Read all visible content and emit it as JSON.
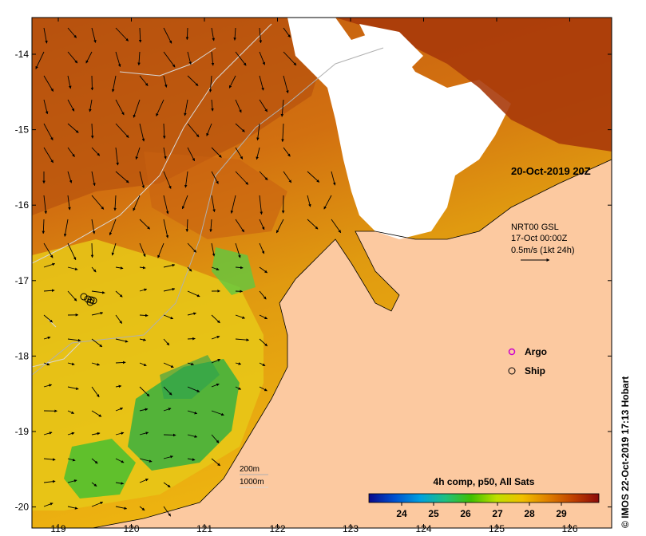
{
  "map": {
    "timestamp": "20-Oct-2019 20Z",
    "current_legend": {
      "line1": "NRT00 GSL",
      "line2": "17-Oct 00:00Z",
      "line3": "0.5m/s (1kt 24h)"
    },
    "symbol_legend": {
      "argo_label": "Argo",
      "ship_label": "Ship",
      "argo_color": "#cc00cc"
    },
    "isobaths": {
      "label_200": "200m",
      "label_1000": "1000m"
    },
    "colorbar": {
      "title": "4h comp, p50, All Sats",
      "ticks": [
        "24",
        "25",
        "26",
        "27",
        "28",
        "29"
      ],
      "colors": [
        "#0a0a8c",
        "#0050d0",
        "#00a0e0",
        "#20c080",
        "#40c000",
        "#c0e000",
        "#f0c000",
        "#e08000",
        "#c04000",
        "#8c0a0a"
      ]
    },
    "lon_ticks": [
      "119",
      "120",
      "121",
      "122",
      "123",
      "124",
      "125",
      "126"
    ],
    "lat_ticks": [
      "-14",
      "-15",
      "-16",
      "-17",
      "-18",
      "-19",
      "-20"
    ],
    "land_color": "#fcc9a0",
    "credit": "© IMOS 22-Oct-2019 17:13 Hobart"
  }
}
